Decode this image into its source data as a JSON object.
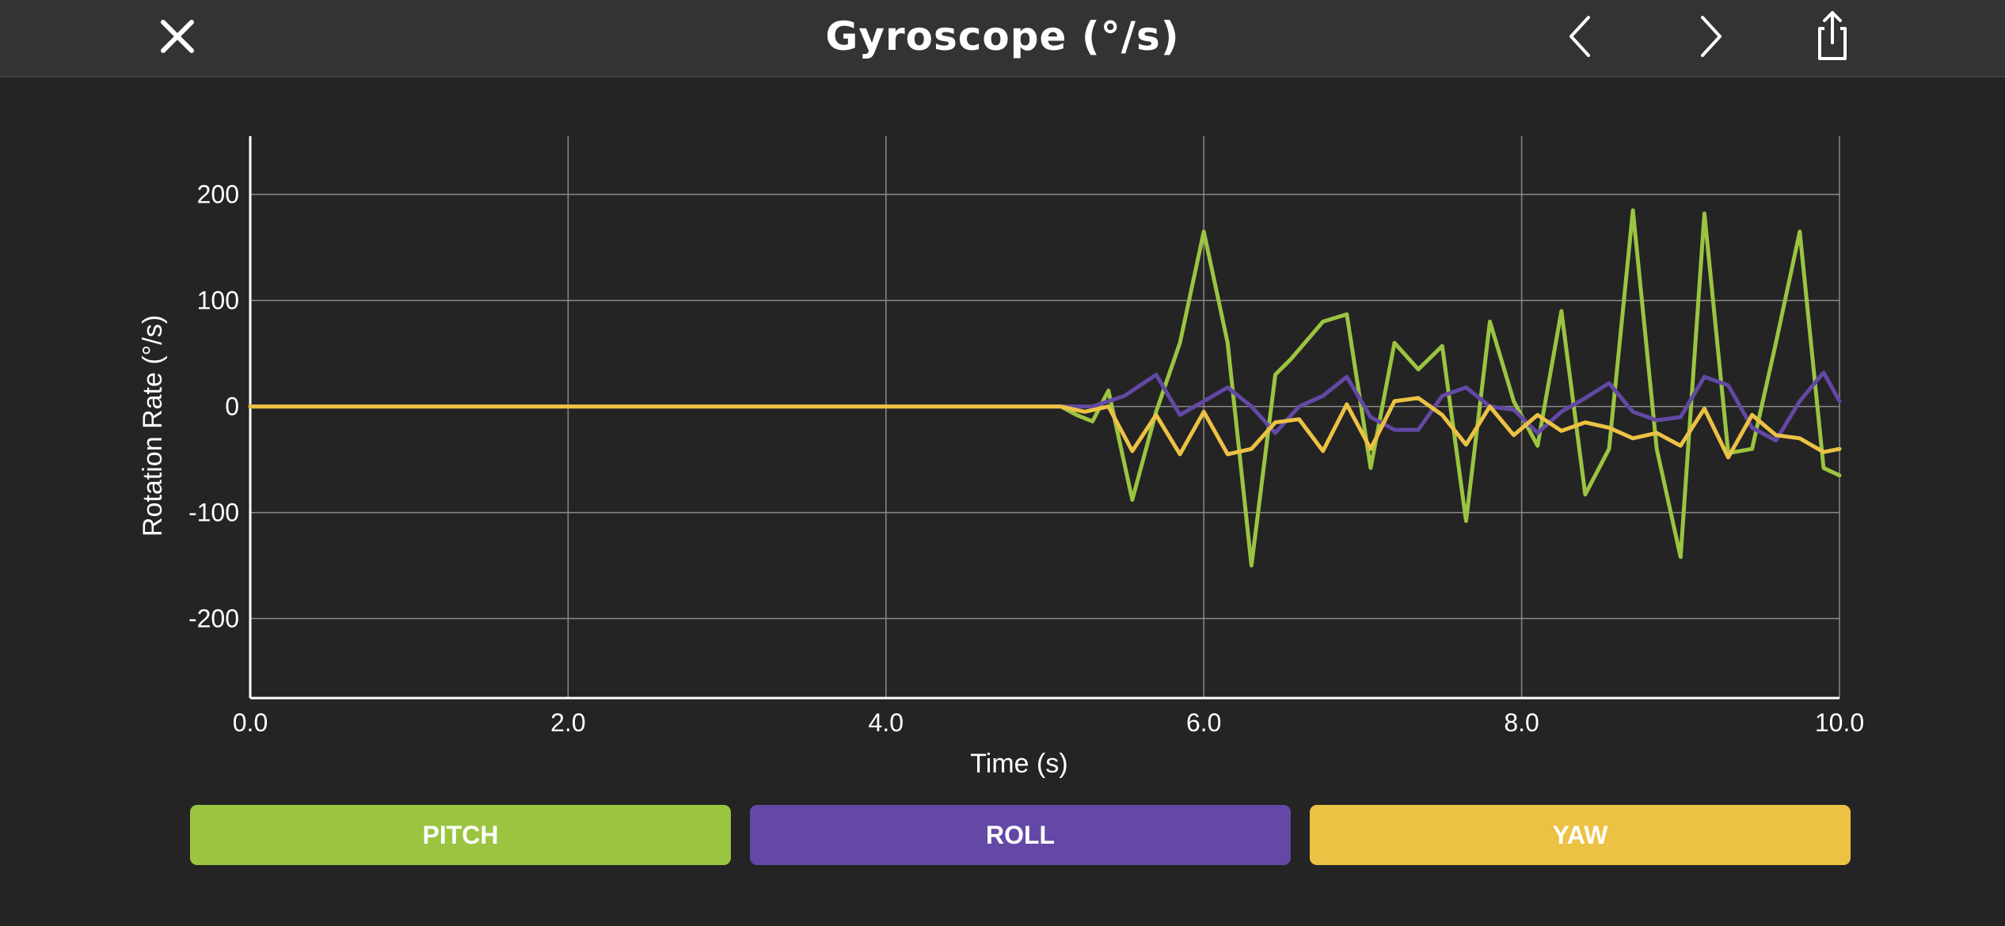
{
  "header": {
    "title": "Gyroscope (°/s)",
    "icons": {
      "close": "close-icon",
      "prev": "chevron-left-icon",
      "next": "chevron-right-icon",
      "share": "share-icon"
    }
  },
  "colors": {
    "background": "#242424",
    "header": "#333333",
    "grid": "#8a8a8a",
    "pitch": "#9bc441",
    "roll": "#6348a5",
    "yaw": "#ecc244"
  },
  "buttons": {
    "pitch": "PITCH",
    "roll": "ROLL",
    "yaw": "YAW"
  },
  "chart_data": {
    "type": "line",
    "title": "",
    "xlabel": "Time (s)",
    "ylabel": "Rotation Rate (°/s)",
    "xlim": [
      0,
      10
    ],
    "ylim": [
      -275,
      255
    ],
    "x_ticks": [
      "0.0",
      "2.0",
      "4.0",
      "6.0",
      "8.0",
      "10.0"
    ],
    "x_tick_values": [
      0,
      2,
      4,
      6,
      8,
      10
    ],
    "y_ticks": [
      "200",
      "100",
      "0",
      "-100",
      "-200"
    ],
    "y_tick_values": [
      200,
      100,
      0,
      -100,
      -200
    ],
    "grid": true,
    "legend": "buttons-bottom",
    "series": [
      {
        "name": "PITCH",
        "color": "#9bc441",
        "points": [
          [
            0,
            0
          ],
          [
            5.1,
            0
          ],
          [
            5.2,
            -8
          ],
          [
            5.3,
            -14
          ],
          [
            5.4,
            15
          ],
          [
            5.55,
            -88
          ],
          [
            5.7,
            -5
          ],
          [
            5.85,
            60
          ],
          [
            6.0,
            165
          ],
          [
            6.15,
            60
          ],
          [
            6.3,
            -150
          ],
          [
            6.45,
            30
          ],
          [
            6.55,
            45
          ],
          [
            6.75,
            80
          ],
          [
            6.9,
            87
          ],
          [
            7.05,
            -58
          ],
          [
            7.2,
            60
          ],
          [
            7.35,
            35
          ],
          [
            7.5,
            57
          ],
          [
            7.65,
            -108
          ],
          [
            7.8,
            80
          ],
          [
            7.95,
            5
          ],
          [
            8.1,
            -37
          ],
          [
            8.25,
            90
          ],
          [
            8.4,
            -83
          ],
          [
            8.55,
            -40
          ],
          [
            8.7,
            185
          ],
          [
            8.85,
            -40
          ],
          [
            9.0,
            -142
          ],
          [
            9.15,
            182
          ],
          [
            9.3,
            -44
          ],
          [
            9.45,
            -40
          ],
          [
            9.6,
            60
          ],
          [
            9.75,
            165
          ],
          [
            9.9,
            -58
          ],
          [
            10.0,
            -65
          ]
        ]
      },
      {
        "name": "ROLL",
        "color": "#6348a5",
        "points": [
          [
            0,
            0
          ],
          [
            5.1,
            0
          ],
          [
            5.3,
            0
          ],
          [
            5.5,
            10
          ],
          [
            5.7,
            30
          ],
          [
            5.85,
            -8
          ],
          [
            6.0,
            5
          ],
          [
            6.15,
            18
          ],
          [
            6.3,
            0
          ],
          [
            6.45,
            -25
          ],
          [
            6.6,
            0
          ],
          [
            6.75,
            10
          ],
          [
            6.9,
            28
          ],
          [
            7.05,
            -10
          ],
          [
            7.2,
            -22
          ],
          [
            7.35,
            -22
          ],
          [
            7.5,
            10
          ],
          [
            7.65,
            18
          ],
          [
            7.8,
            0
          ],
          [
            7.95,
            -3
          ],
          [
            8.1,
            -25
          ],
          [
            8.25,
            -5
          ],
          [
            8.4,
            8
          ],
          [
            8.55,
            22
          ],
          [
            8.7,
            -5
          ],
          [
            8.85,
            -13
          ],
          [
            9.0,
            -10
          ],
          [
            9.15,
            28
          ],
          [
            9.3,
            20
          ],
          [
            9.45,
            -20
          ],
          [
            9.6,
            -32
          ],
          [
            9.75,
            5
          ],
          [
            9.9,
            32
          ],
          [
            10.0,
            5
          ]
        ]
      },
      {
        "name": "YAW",
        "color": "#ecc244",
        "points": [
          [
            0,
            0
          ],
          [
            5.1,
            0
          ],
          [
            5.25,
            -5
          ],
          [
            5.4,
            0
          ],
          [
            5.55,
            -42
          ],
          [
            5.7,
            -8
          ],
          [
            5.85,
            -45
          ],
          [
            6.0,
            -5
          ],
          [
            6.15,
            -45
          ],
          [
            6.3,
            -40
          ],
          [
            6.45,
            -15
          ],
          [
            6.6,
            -12
          ],
          [
            6.75,
            -42
          ],
          [
            6.9,
            2
          ],
          [
            7.05,
            -40
          ],
          [
            7.2,
            5
          ],
          [
            7.35,
            8
          ],
          [
            7.5,
            -8
          ],
          [
            7.65,
            -36
          ],
          [
            7.8,
            0
          ],
          [
            7.95,
            -27
          ],
          [
            8.1,
            -8
          ],
          [
            8.25,
            -23
          ],
          [
            8.4,
            -15
          ],
          [
            8.55,
            -20
          ],
          [
            8.7,
            -30
          ],
          [
            8.85,
            -25
          ],
          [
            9.0,
            -37
          ],
          [
            9.15,
            -2
          ],
          [
            9.3,
            -48
          ],
          [
            9.45,
            -8
          ],
          [
            9.6,
            -27
          ],
          [
            9.75,
            -30
          ],
          [
            9.9,
            -43
          ],
          [
            10.0,
            -40
          ]
        ]
      }
    ]
  }
}
